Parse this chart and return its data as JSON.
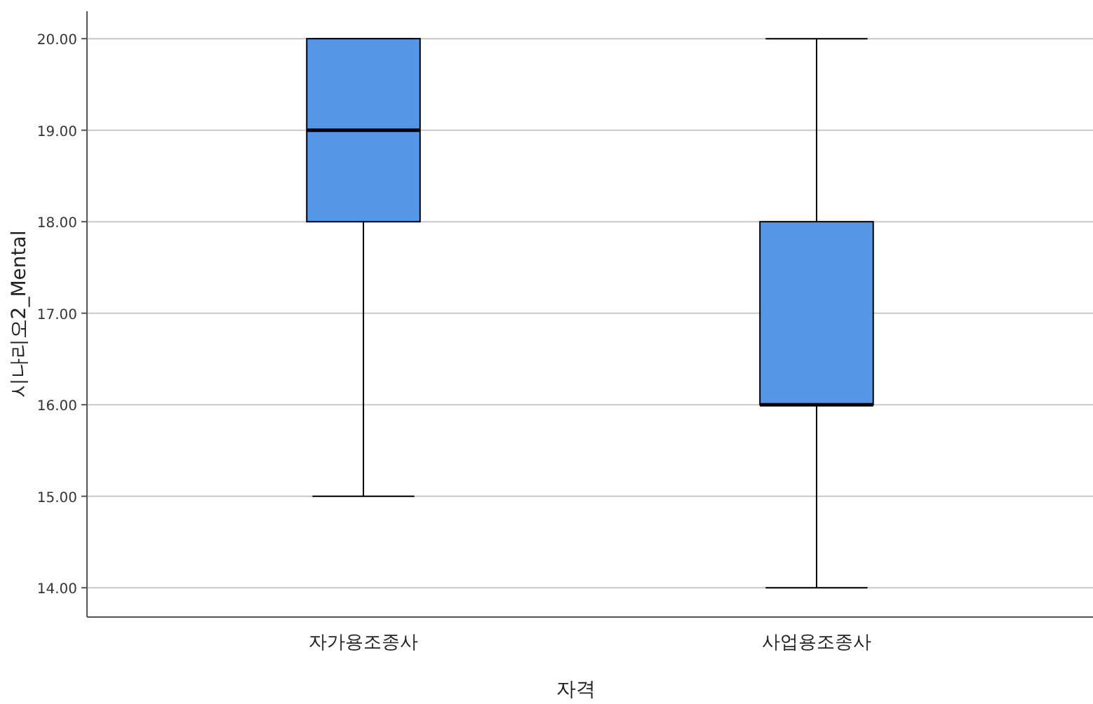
{
  "chart_data": {
    "type": "box",
    "xlabel": "자격",
    "ylabel": "시나리오2_Mental",
    "categories": [
      "자가용조종사",
      "사업용조종사"
    ],
    "boxes": [
      {
        "low": 15,
        "q1": 18,
        "median": 19,
        "q3": 20,
        "high": 20
      },
      {
        "low": 14,
        "q1": 16,
        "median": 16,
        "q3": 18,
        "high": 20
      }
    ],
    "color": "#5596e6",
    "ylim": [
      13.68,
      20.3
    ],
    "yticks": [
      {
        "value": 14,
        "label": "14.00"
      },
      {
        "value": 15,
        "label": "15.00"
      },
      {
        "value": 16,
        "label": "16.00"
      },
      {
        "value": 17,
        "label": "17.00"
      },
      {
        "value": 18,
        "label": "18.00"
      },
      {
        "value": 19,
        "label": "19.00"
      },
      {
        "value": 20,
        "label": "20.00"
      }
    ],
    "grid": "y"
  }
}
